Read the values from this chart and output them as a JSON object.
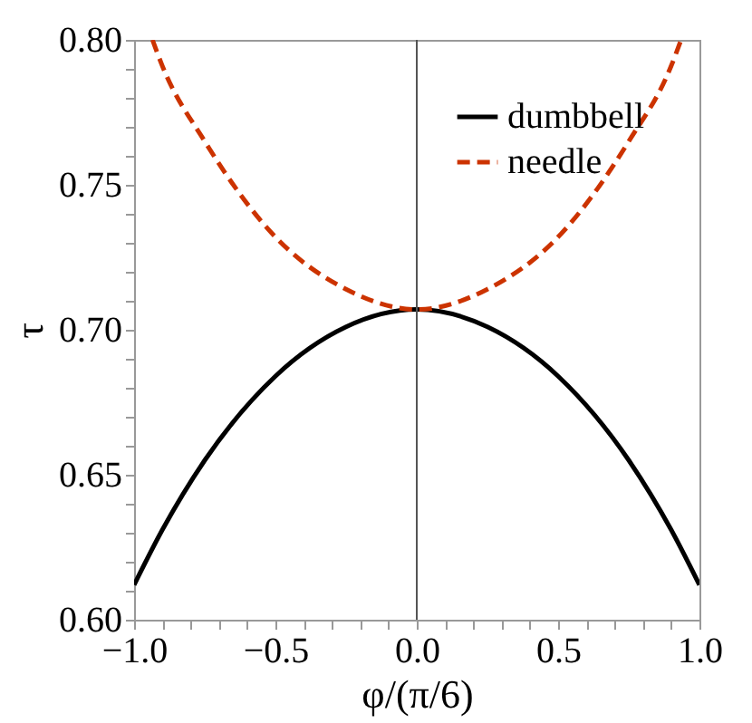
{
  "chart_data": {
    "type": "line",
    "xlabel": "φ/(π/6)",
    "ylabel": "τ",
    "xlim": [
      -1.0,
      1.0
    ],
    "ylim": [
      0.6,
      0.8
    ],
    "xticks": [
      {
        "value": -1.0,
        "label": "−1.0"
      },
      {
        "value": -0.9,
        "label": null
      },
      {
        "value": -0.8,
        "label": null
      },
      {
        "value": -0.7,
        "label": null
      },
      {
        "value": -0.6,
        "label": null
      },
      {
        "value": -0.5,
        "label": "−0.5"
      },
      {
        "value": -0.4,
        "label": null
      },
      {
        "value": -0.3,
        "label": null
      },
      {
        "value": -0.2,
        "label": null
      },
      {
        "value": -0.1,
        "label": null
      },
      {
        "value": 0.0,
        "label": "0.0"
      },
      {
        "value": 0.1,
        "label": null
      },
      {
        "value": 0.2,
        "label": null
      },
      {
        "value": 0.3,
        "label": null
      },
      {
        "value": 0.4,
        "label": null
      },
      {
        "value": 0.5,
        "label": "0.5"
      },
      {
        "value": 0.6,
        "label": null
      },
      {
        "value": 0.7,
        "label": null
      },
      {
        "value": 0.8,
        "label": null
      },
      {
        "value": 0.9,
        "label": null
      },
      {
        "value": 1.0,
        "label": "1.0"
      }
    ],
    "yticks": [
      {
        "value": 0.6,
        "label": "0.60"
      },
      {
        "value": 0.61,
        "label": null
      },
      {
        "value": 0.62,
        "label": null
      },
      {
        "value": 0.63,
        "label": null
      },
      {
        "value": 0.64,
        "label": null
      },
      {
        "value": 0.65,
        "label": "0.65"
      },
      {
        "value": 0.66,
        "label": null
      },
      {
        "value": 0.67,
        "label": null
      },
      {
        "value": 0.68,
        "label": null
      },
      {
        "value": 0.69,
        "label": null
      },
      {
        "value": 0.7,
        "label": "0.70"
      },
      {
        "value": 0.71,
        "label": null
      },
      {
        "value": 0.72,
        "label": null
      },
      {
        "value": 0.73,
        "label": null
      },
      {
        "value": 0.74,
        "label": null
      },
      {
        "value": 0.75,
        "label": "0.75"
      },
      {
        "value": 0.76,
        "label": null
      },
      {
        "value": 0.77,
        "label": null
      },
      {
        "value": 0.78,
        "label": null
      },
      {
        "value": 0.79,
        "label": null
      },
      {
        "value": 0.8,
        "label": "0.80"
      }
    ],
    "grid": false,
    "legend": "top right",
    "marker": "none",
    "ref_lines": [
      {
        "axis": "x",
        "value": 0,
        "color": "#555555"
      }
    ],
    "series": [
      {
        "name": "dumbbell",
        "color": "#000000",
        "line_style": "solid",
        "x": [
          -1.0,
          -0.9,
          -0.75,
          -0.5,
          -0.25,
          0.0,
          0.25,
          0.5,
          0.75,
          0.9,
          1.0
        ],
        "values": [
          0.612,
          0.631,
          0.655,
          0.684,
          0.701,
          0.707,
          0.701,
          0.684,
          0.655,
          0.631,
          0.612
        ]
      },
      {
        "name": "needle",
        "color": "#cc3300",
        "line_style": "dashed",
        "x": [
          -0.935,
          -0.9,
          -0.75,
          -0.5,
          -0.25,
          0.0,
          0.25,
          0.5,
          0.75,
          0.9,
          0.935
        ],
        "values": [
          0.8,
          0.791,
          0.765,
          0.732,
          0.714,
          0.707,
          0.714,
          0.732,
          0.765,
          0.791,
          0.8
        ]
      }
    ]
  }
}
